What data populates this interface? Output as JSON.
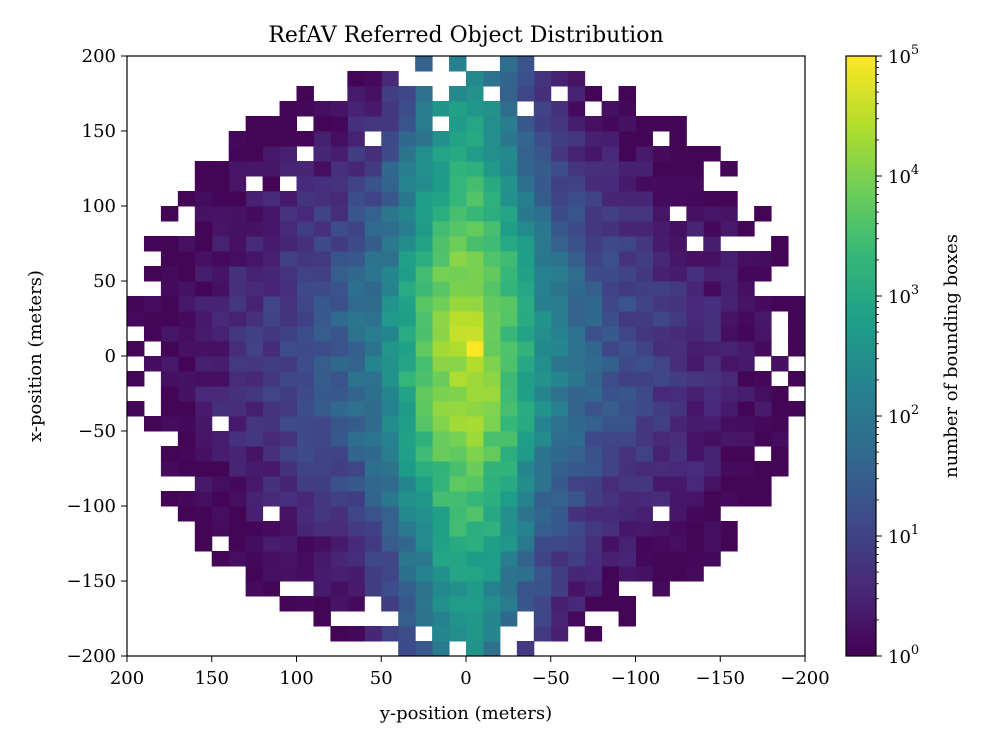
{
  "chart_data": {
    "type": "heatmap",
    "title": "RefAV Referred Object Distribution",
    "xlabel": "y-position (meters)",
    "ylabel": "x-position (meters)",
    "xlim": [
      200,
      -200
    ],
    "ylim": [
      -200,
      200
    ],
    "x_ticks": [
      200,
      150,
      100,
      50,
      0,
      -50,
      -100,
      -150,
      -200
    ],
    "x_tick_labels": [
      "200",
      "150",
      "100",
      "50",
      "0",
      "−50",
      "−100",
      "−150",
      "−200"
    ],
    "y_ticks": [
      200,
      150,
      100,
      50,
      0,
      -50,
      -100,
      -150,
      -200
    ],
    "y_tick_labels": [
      "200",
      "150",
      "100",
      "50",
      "0",
      "−50",
      "−100",
      "−150",
      "−200"
    ],
    "bins": 40,
    "bin_size_meters": 10,
    "colormap": "viridis",
    "scale": "log",
    "max_count": 100000,
    "peak_location_meters": [
      -5,
      5
    ],
    "colorbar": {
      "label": "number of bounding boxes",
      "ticks": [
        1,
        10,
        100,
        1000,
        10000,
        100000
      ],
      "exponents": [
        "0",
        "1",
        "2",
        "3",
        "4",
        "5"
      ],
      "base": "10"
    },
    "colors": {
      "viridis": [
        "#440154",
        "#482878",
        "#3e4989",
        "#31688e",
        "#26828e",
        "#1f9e89",
        "#35b779",
        "#6ece58",
        "#b5de2b",
        "#fde725"
      ]
    }
  }
}
